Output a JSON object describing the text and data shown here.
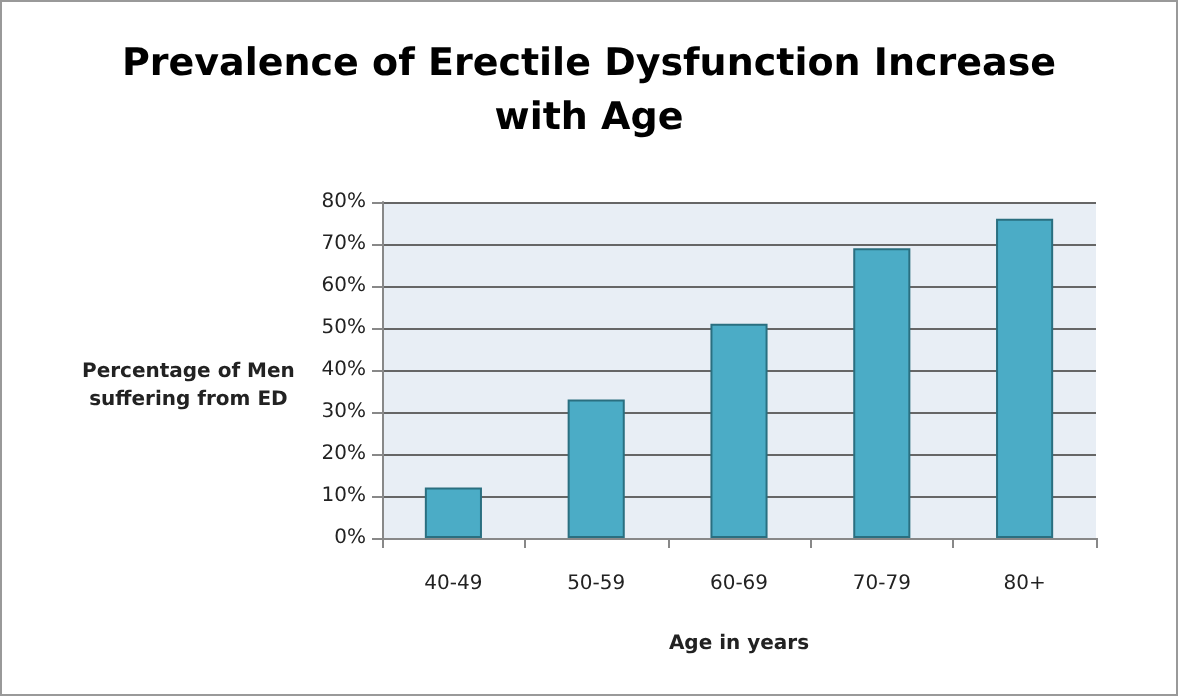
{
  "chart_data": {
    "type": "bar",
    "title": "Prevalence of Erectile Dysfunction Increase\nwith Age",
    "xlabel": "Age in years",
    "ylabel": "Percentage of Men\nsuffering from ED",
    "categories": [
      "40-49",
      "50-59",
      "60-69",
      "70-79",
      "80+"
    ],
    "values": [
      12,
      33,
      51,
      69,
      76
    ],
    "color": "#4bacc6",
    "ylim": [
      0,
      80
    ],
    "yticks": [
      {
        "value": 0,
        "label": "0%"
      },
      {
        "value": 10,
        "label": "10%"
      },
      {
        "value": 20,
        "label": "20%"
      },
      {
        "value": 30,
        "label": "30%"
      },
      {
        "value": 40,
        "label": "40%"
      },
      {
        "value": 50,
        "label": "50%"
      },
      {
        "value": 60,
        "label": "60%"
      },
      {
        "value": 70,
        "label": "70%"
      },
      {
        "value": 80,
        "label": "80%"
      }
    ],
    "grid": "y"
  }
}
